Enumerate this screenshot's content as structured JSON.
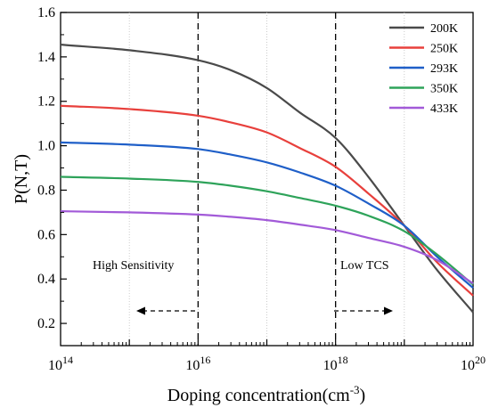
{
  "chart_data": {
    "type": "line",
    "xlabel": "Doping concentration(cm",
    "xlabel_sup": "-3",
    "xlabel_close": ")",
    "ylabel": "P(N,T)",
    "x_scale": "log",
    "xlim": [
      100000000000000.0,
      1e+20
    ],
    "ylim": [
      0.1,
      1.6
    ],
    "y_ticks": [
      "0.2",
      "0.4",
      "0.6",
      "0.8",
      "1.0",
      "1.2",
      "1.4",
      "1.6"
    ],
    "y_tick_values": [
      0.2,
      0.4,
      0.6,
      0.8,
      1.0,
      1.2,
      1.4,
      1.6
    ],
    "x_ticks": [
      {
        "base": "10",
        "exp": "14",
        "value": 100000000000000.0
      },
      {
        "base": "10",
        "exp": "16",
        "value": 1e+16
      },
      {
        "base": "10",
        "exp": "18",
        "value": 1e+18
      },
      {
        "base": "10",
        "exp": "20",
        "value": 1e+20
      }
    ],
    "grid": "vertical dotted at decades",
    "legend_position": "top-right",
    "x": [
      100000000000000.0,
      1000000000000000.0,
      1e+16,
      3e+16,
      1e+17,
      3e+17,
      1e+18,
      3e+18,
      1e+19,
      3e+19,
      1e+20
    ],
    "series": [
      {
        "name": "200K",
        "color": "#4a4a4a",
        "values": [
          1.455,
          1.43,
          1.385,
          1.34,
          1.26,
          1.15,
          1.035,
          0.86,
          0.64,
          0.44,
          0.25
        ]
      },
      {
        "name": "250K",
        "color": "#e8403c",
        "values": [
          1.18,
          1.165,
          1.135,
          1.105,
          1.06,
          0.99,
          0.905,
          0.785,
          0.64,
          0.475,
          0.325
        ]
      },
      {
        "name": "293K",
        "color": "#1f5fc8",
        "values": [
          1.015,
          1.005,
          0.985,
          0.96,
          0.925,
          0.88,
          0.82,
          0.74,
          0.64,
          0.5,
          0.36
        ]
      },
      {
        "name": "350K",
        "color": "#2ea35a",
        "values": [
          0.86,
          0.852,
          0.837,
          0.82,
          0.795,
          0.765,
          0.73,
          0.685,
          0.615,
          0.51,
          0.375
        ]
      },
      {
        "name": "433K",
        "color": "#a25ad8",
        "values": [
          0.705,
          0.7,
          0.69,
          0.68,
          0.665,
          0.645,
          0.62,
          0.585,
          0.545,
          0.485,
          0.38
        ]
      }
    ],
    "dashed_lines_x": [
      1e+16,
      1e+18
    ],
    "annotations": {
      "left": {
        "text": "High Sensitivity",
        "arrow": "left"
      },
      "right": {
        "text": "Low TCS",
        "arrow": "right"
      }
    }
  }
}
